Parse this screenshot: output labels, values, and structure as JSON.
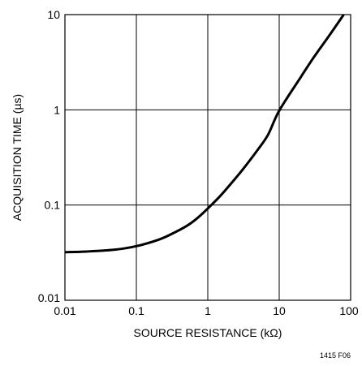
{
  "chart_data": {
    "type": "line",
    "title": "",
    "xlabel": "SOURCE RESISTANCE (kΩ)",
    "ylabel": "ACQUISITION TIME (µs)",
    "x_scale": "log",
    "y_scale": "log",
    "xlim": [
      0.01,
      100
    ],
    "ylim": [
      0.01,
      10
    ],
    "x_ticks": [
      "0.01",
      "0.1",
      "1",
      "10",
      "100"
    ],
    "y_ticks": [
      "0.01",
      "0.1",
      "1",
      "10"
    ],
    "grid": true,
    "series": [
      {
        "x": [
          0.01,
          0.02,
          0.05,
          0.1,
          0.2,
          0.3,
          0.5,
          0.7,
          1,
          1.5,
          2,
          3,
          5,
          7,
          10,
          20,
          30,
          50,
          80
        ],
        "y": [
          0.032,
          0.0325,
          0.034,
          0.037,
          0.043,
          0.049,
          0.06,
          0.072,
          0.092,
          0.125,
          0.16,
          0.23,
          0.38,
          0.55,
          0.98,
          2.2,
          3.5,
          6.0,
          10.0
        ]
      }
    ]
  },
  "footnote": "1415 F06"
}
